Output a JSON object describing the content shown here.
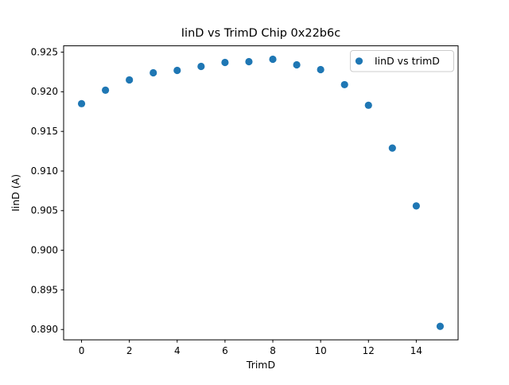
{
  "chart_data": {
    "type": "scatter",
    "title": "IinD vs TrimD Chip 0x22b6c",
    "xlabel": "TrimD",
    "ylabel": "IinD (A)",
    "legend": [
      "IinD vs trimD"
    ],
    "legend_position": "upper right",
    "grid": false,
    "marker_color": "#1f77b4",
    "x": [
      0,
      1,
      2,
      3,
      4,
      5,
      6,
      7,
      8,
      9,
      10,
      11,
      12,
      13,
      14,
      15
    ],
    "y": [
      0.9185,
      0.9202,
      0.9215,
      0.9224,
      0.9227,
      0.9232,
      0.9237,
      0.9238,
      0.9241,
      0.9234,
      0.9228,
      0.9209,
      0.9183,
      0.9129,
      0.9056,
      0.8904
    ],
    "xlim": [
      -0.75,
      15.75
    ],
    "ylim": [
      0.8887,
      0.9258
    ],
    "xticks": [
      0,
      2,
      4,
      6,
      8,
      10,
      12,
      14
    ],
    "yticks": [
      0.89,
      0.895,
      0.9,
      0.905,
      0.91,
      0.915,
      0.92,
      0.925
    ]
  }
}
